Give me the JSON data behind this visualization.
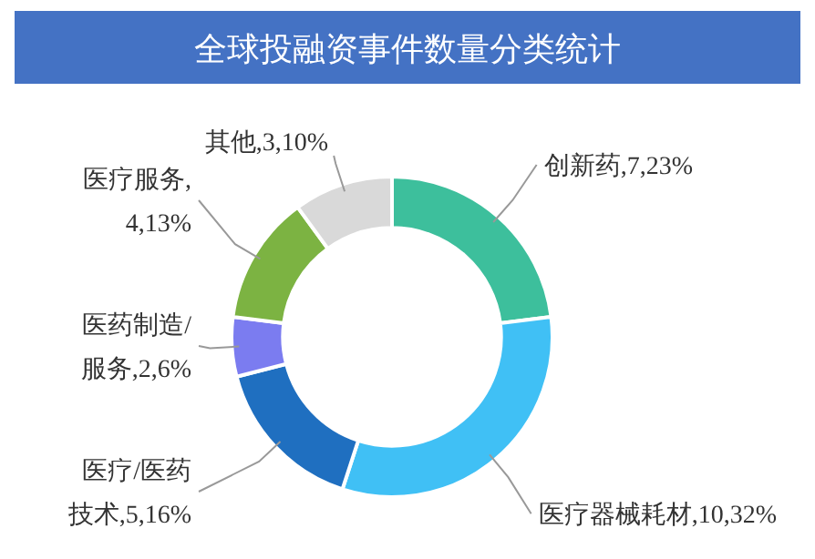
{
  "chart_data": {
    "type": "donut",
    "title": "全球投融资事件数量分类统计",
    "categories": [
      "创新药,7",
      "医疗器械耗材,10",
      "医疗/医药技术,5",
      "医药制造/服务,2",
      "医疗服务,4",
      "其他,3"
    ],
    "values": [
      23,
      32,
      16,
      6,
      13,
      10
    ],
    "value_labels": [
      "23%",
      "32%",
      "16%",
      "6%",
      "13%",
      "10%"
    ],
    "colors": [
      "#3dbf9c",
      "#40c0f5",
      "#1f6fc0",
      "#7b7cf0",
      "#7cb342",
      "#d9d9d9"
    ]
  }
}
